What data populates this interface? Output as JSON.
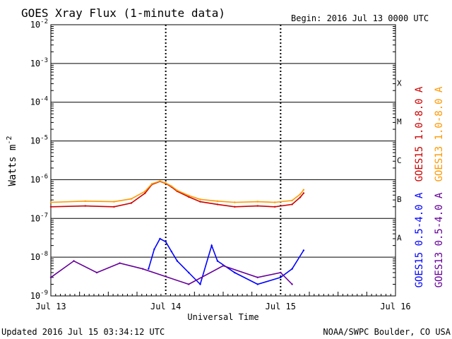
{
  "chart_data": {
    "type": "line",
    "title": "GOES Xray Flux (1-minute data)",
    "begin_label": "Begin:  2016 Jul 13 0000 UTC",
    "xlabel": "Universal Time",
    "ylabel_main": "Watts m",
    "ylabel_exp": "-2",
    "x_ticks": [
      "Jul 13",
      "Jul 14",
      "Jul 15",
      "Jul 16"
    ],
    "x_range_days": [
      0,
      3
    ],
    "y_scale": "log",
    "ylim": [
      1e-09,
      0.01
    ],
    "y_tick_exponents": [
      -9,
      -8,
      -7,
      -6,
      -5,
      -4,
      -3,
      -2
    ],
    "flare_classes": [
      "A",
      "B",
      "C",
      "M",
      "X"
    ],
    "grid": true,
    "legend_placement": "right",
    "series": [
      {
        "name": "GOES15 1.0-8.0 A",
        "color": "#cc0000",
        "x": [
          0,
          0.3,
          0.55,
          0.7,
          0.82,
          0.88,
          0.95,
          1.0,
          1.05,
          1.1,
          1.2,
          1.3,
          1.45,
          1.6,
          1.8,
          1.95,
          2.1,
          2.17,
          2.2
        ],
        "y": [
          2e-07,
          2.1e-07,
          2e-07,
          2.5e-07,
          4.5e-07,
          7.5e-07,
          9e-07,
          8e-07,
          6.5e-07,
          5e-07,
          3.6e-07,
          2.7e-07,
          2.3e-07,
          2e-07,
          2.1e-07,
          2e-07,
          2.3e-07,
          3.5e-07,
          4.5e-07
        ]
      },
      {
        "name": "GOES13 1.0-8.0 A",
        "color": "#ff9900",
        "x": [
          0,
          0.3,
          0.55,
          0.7,
          0.82,
          0.88,
          0.95,
          1.0,
          1.05,
          1.1,
          1.2,
          1.3,
          1.45,
          1.6,
          1.8,
          1.95,
          2.1,
          2.17,
          2.2
        ],
        "y": [
          2.6e-07,
          2.8e-07,
          2.7e-07,
          3.2e-07,
          5e-07,
          7.8e-07,
          9.2e-07,
          8.2e-07,
          6.8e-07,
          5.3e-07,
          3.9e-07,
          3.1e-07,
          2.8e-07,
          2.6e-07,
          2.7e-07,
          2.6e-07,
          2.9e-07,
          4.2e-07,
          5.5e-07
        ]
      },
      {
        "name": "GOES15 0.5-4.0 A",
        "color": "#0000ff",
        "x": [
          0.85,
          0.9,
          0.95,
          1.0,
          1.05,
          1.1,
          1.2,
          1.3,
          1.4,
          1.45,
          1.6,
          1.8,
          2.0,
          2.1,
          2.2
        ],
        "y": [
          5e-09,
          1.6e-08,
          3e-08,
          2.5e-08,
          1.4e-08,
          8e-09,
          4e-09,
          2e-09,
          2e-08,
          8e-09,
          4e-09,
          2e-09,
          3e-09,
          5e-09,
          1.5e-08
        ]
      },
      {
        "name": "GOES13 0.5-4.0 A",
        "color": "#660099",
        "x": [
          0,
          0.2,
          0.4,
          0.6,
          0.8,
          1.2,
          1.5,
          1.8,
          2.0,
          2.1
        ],
        "y": [
          3e-09,
          8e-09,
          4e-09,
          7e-09,
          5e-09,
          2e-09,
          6e-09,
          3e-09,
          4e-09,
          2e-09
        ]
      }
    ]
  },
  "footer": {
    "updated": "Updated 2016 Jul 15 03:34:12 UTC",
    "credit": "NOAA/SWPC Boulder, CO USA"
  }
}
